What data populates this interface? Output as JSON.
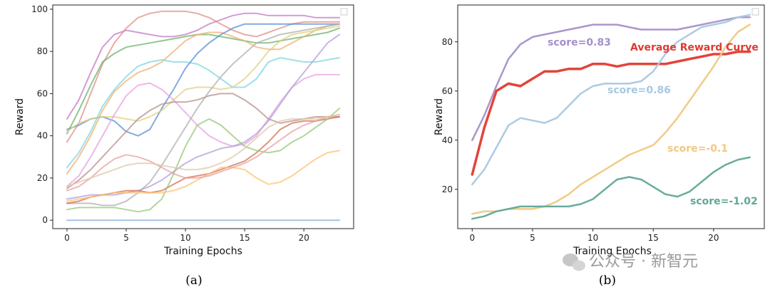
{
  "chart_data": [
    {
      "type": "line",
      "caption": "(a)",
      "xlabel": "Training Epochs",
      "ylabel": "Reward",
      "xlim": [
        -1.2,
        24.2
      ],
      "ylim": [
        -4,
        102
      ],
      "xticks": [
        0,
        5,
        10,
        15,
        20
      ],
      "yticks": [
        0,
        20,
        40,
        60,
        80,
        100
      ],
      "grid": false,
      "legend": "top-right, empty",
      "x": [
        0,
        1,
        2,
        3,
        4,
        5,
        6,
        7,
        8,
        9,
        10,
        11,
        12,
        13,
        14,
        15,
        16,
        17,
        18,
        19,
        20,
        21,
        22,
        23
      ],
      "series": [
        {
          "color": "#c47bc4",
          "values": [
            48,
            57,
            70,
            82,
            88,
            90,
            89,
            88,
            87,
            87,
            88,
            90,
            93,
            95,
            97,
            98,
            98,
            97,
            97,
            97,
            97,
            96,
            96,
            96
          ]
        },
        {
          "color": "#e0908a",
          "values": [
            37,
            46,
            60,
            74,
            84,
            91,
            96,
            98,
            99,
            99,
            99,
            98,
            96,
            93,
            90,
            88,
            87,
            89,
            91,
            93,
            94,
            94,
            94,
            94
          ]
        },
        {
          "color": "#6ab56a",
          "values": [
            41,
            52,
            64,
            75,
            79,
            82,
            83,
            84,
            85,
            86,
            87,
            88,
            88,
            87,
            86,
            85,
            84,
            84,
            85,
            86,
            87,
            88,
            89,
            91
          ]
        },
        {
          "color": "#f0b070",
          "values": [
            22,
            30,
            40,
            52,
            61,
            66,
            70,
            72,
            75,
            80,
            85,
            88,
            89,
            89,
            87,
            85,
            82,
            81,
            81,
            84,
            87,
            90,
            92,
            93
          ]
        },
        {
          "color": "#7fd6e0",
          "values": [
            25,
            32,
            42,
            54,
            62,
            68,
            73,
            75,
            76,
            75,
            75,
            74,
            71,
            67,
            63,
            63,
            67,
            75,
            77,
            76,
            75,
            75,
            76,
            77
          ]
        },
        {
          "color": "#5b8fd6",
          "values": [
            43,
            45,
            48,
            49,
            47,
            42,
            40,
            43,
            53,
            62,
            72,
            79,
            84,
            88,
            91,
            93,
            93,
            93,
            93,
            93,
            93,
            93,
            93,
            93
          ]
        },
        {
          "color": "#e0d080",
          "values": [
            42,
            46,
            48,
            49,
            49,
            48,
            47,
            49,
            52,
            57,
            62,
            63,
            63,
            62,
            63,
            67,
            73,
            80,
            85,
            88,
            89,
            90,
            91,
            92
          ]
        },
        {
          "color": "#e8a0e0",
          "values": [
            16,
            21,
            30,
            40,
            50,
            59,
            64,
            65,
            62,
            57,
            51,
            45,
            40,
            37,
            35,
            36,
            40,
            48,
            56,
            63,
            67,
            69,
            69,
            69
          ]
        },
        {
          "color": "#b4908a",
          "values": [
            15,
            19,
            24,
            30,
            36,
            42,
            48,
            52,
            55,
            56,
            56,
            57,
            59,
            60,
            60,
            57,
            53,
            48,
            46,
            47,
            48,
            49,
            49,
            49
          ]
        },
        {
          "color": "#b0b0b0",
          "values": [
            8,
            8,
            8,
            7,
            7,
            9,
            13,
            18,
            26,
            35,
            44,
            53,
            61,
            68,
            74,
            79,
            84,
            86,
            88,
            89,
            90,
            91,
            92,
            93
          ]
        },
        {
          "color": "#b0a0d8",
          "values": [
            10,
            11,
            12,
            12,
            12,
            13,
            14,
            16,
            19,
            23,
            27,
            30,
            32,
            34,
            35,
            37,
            41,
            47,
            55,
            63,
            70,
            77,
            84,
            88
          ]
        },
        {
          "color": "#d47050",
          "values": [
            8,
            9,
            11,
            12,
            13,
            14,
            14,
            13,
            14,
            17,
            20,
            21,
            22,
            24,
            26,
            28,
            32,
            37,
            43,
            46,
            47,
            47,
            48,
            49
          ]
        },
        {
          "color": "#98c878",
          "values": [
            5,
            6,
            6,
            6,
            6,
            5,
            4,
            5,
            10,
            22,
            35,
            45,
            48,
            45,
            40,
            35,
            33,
            32,
            33,
            37,
            40,
            44,
            48,
            53
          ]
        },
        {
          "color": "#ffc070",
          "values": [
            9,
            10,
            11,
            12,
            13,
            13,
            13,
            13,
            13,
            14,
            16,
            19,
            22,
            25,
            25,
            24,
            20,
            17,
            18,
            21,
            25,
            29,
            32,
            33
          ]
        },
        {
          "color": "#e8a0a0",
          "values": [
            14,
            16,
            20,
            25,
            29,
            31,
            30,
            28,
            25,
            22,
            20,
            20,
            21,
            23,
            25,
            27,
            30,
            34,
            38,
            42,
            45,
            47,
            49,
            50
          ]
        },
        {
          "color": "#e0c8a8",
          "values": [
            16,
            18,
            20,
            22,
            24,
            26,
            27,
            27,
            26,
            25,
            24,
            24,
            25,
            27,
            30,
            34,
            39,
            44,
            47,
            48,
            48,
            48,
            49,
            50
          ]
        },
        {
          "color": "#8ab0d8",
          "values": [
            0,
            0,
            0,
            0,
            0,
            0,
            0,
            0,
            0,
            0,
            0,
            0,
            0,
            0,
            0,
            0,
            0,
            0,
            0,
            0,
            0,
            0,
            0,
            0
          ]
        }
      ]
    },
    {
      "type": "line",
      "caption": "(b)",
      "xlabel": "Training Epochs",
      "ylabel": "Reward",
      "xlim": [
        -1.2,
        24.2
      ],
      "ylim": [
        4,
        95
      ],
      "xticks": [
        0,
        5,
        10,
        15,
        20
      ],
      "yticks": [
        20,
        40,
        60,
        80
      ],
      "grid": false,
      "legend": "top-right, empty",
      "x": [
        0,
        1,
        2,
        3,
        4,
        5,
        6,
        7,
        8,
        9,
        10,
        11,
        12,
        13,
        14,
        15,
        16,
        17,
        18,
        19,
        20,
        21,
        22,
        23
      ],
      "series": [
        {
          "color": "#a690c8",
          "width": 2.5,
          "values": [
            40,
            50,
            62,
            73,
            79,
            82,
            83,
            84,
            85,
            86,
            87,
            87,
            87,
            86,
            85,
            85,
            85,
            85,
            86,
            87,
            88,
            89,
            90,
            90
          ]
        },
        {
          "color": "#e03a2f",
          "width": 3.5,
          "values": [
            26,
            45,
            60,
            63,
            62,
            65,
            68,
            68,
            69,
            69,
            71,
            71,
            70,
            71,
            71,
            71,
            71,
            72,
            73,
            74,
            75,
            75,
            76,
            76
          ]
        },
        {
          "color": "#a8c8e0",
          "width": 2.5,
          "values": [
            22,
            28,
            37,
            46,
            49,
            48,
            47,
            49,
            54,
            59,
            62,
            63,
            63,
            63,
            64,
            68,
            75,
            80,
            83,
            86,
            87,
            88,
            90,
            91
          ]
        },
        {
          "color": "#f0c880",
          "width": 2.5,
          "values": [
            10,
            11,
            11,
            12,
            12,
            12,
            13,
            15,
            18,
            22,
            25,
            28,
            31,
            34,
            36,
            38,
            43,
            49,
            56,
            63,
            70,
            78,
            84,
            87
          ]
        },
        {
          "color": "#60a898",
          "width": 2.5,
          "values": [
            8,
            9,
            11,
            12,
            13,
            13,
            13,
            13,
            13,
            14,
            16,
            20,
            24,
            25,
            24,
            21,
            18,
            17,
            19,
            23,
            27,
            30,
            32,
            33
          ]
        }
      ],
      "annotations": [
        {
          "text": "score=0.83",
          "color": "#a690c8"
        },
        {
          "text": "Average Reward Curve",
          "color": "#e03a2f"
        },
        {
          "text": "score=0.86",
          "color": "#a8c8e0"
        },
        {
          "text": "score=-0.1",
          "color": "#f0c880"
        },
        {
          "text": "score=-1.02",
          "color": "#60a898"
        }
      ]
    }
  ],
  "watermark": "公众号 · 新智元"
}
